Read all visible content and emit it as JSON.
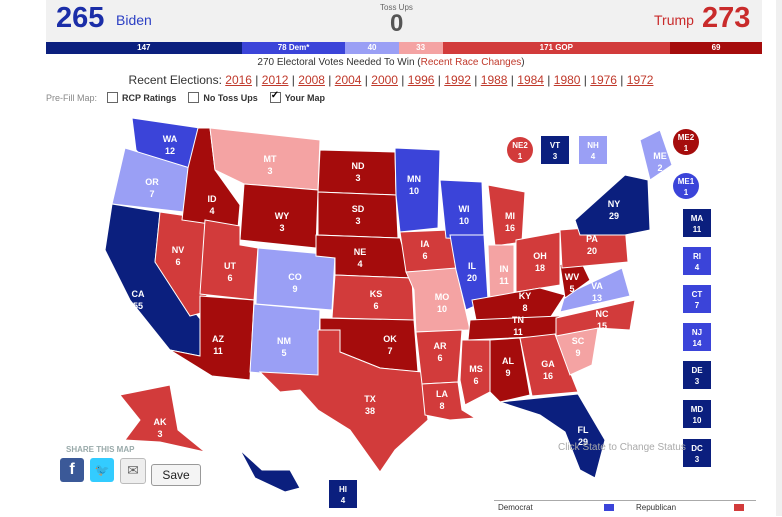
{
  "header": {
    "dem_votes": "265",
    "dem_name": "Biden",
    "toss_label": "Toss Ups",
    "toss_votes": "0",
    "rep_name": "Trump",
    "rep_votes": "273"
  },
  "bar": [
    {
      "label": "147",
      "votes": 147,
      "color": "#0b1f7e"
    },
    {
      "label": "78 Dem*",
      "votes": 78,
      "color": "#3b44d9"
    },
    {
      "label": "40",
      "votes": 40,
      "color": "#9a9ff5"
    },
    {
      "label": "33",
      "votes": 33,
      "color": "#f4a3a3"
    },
    {
      "label": "171 GOP",
      "votes": 171,
      "color": "#d23b3b"
    },
    {
      "label": "69",
      "votes": 69,
      "color": "#a50c0c"
    }
  ],
  "needed": {
    "text": "270 Electoral Votes Needed To Win (",
    "link": "Recent Race Changes",
    "close": ")"
  },
  "recent": {
    "label": "Recent Elections:",
    "years": [
      "2016",
      "2012",
      "2008",
      "2004",
      "2000",
      "1996",
      "1992",
      "1988",
      "1984",
      "1980",
      "1976",
      "1972"
    ]
  },
  "prefill": {
    "label": "Pre-Fill Map:",
    "options": [
      {
        "label": "RCP Ratings",
        "checked": false
      },
      {
        "label": "No Toss Ups",
        "checked": false
      },
      {
        "label": "Your Map",
        "checked": true
      }
    ]
  },
  "colors": {
    "solid_dem": "#0b1f7e",
    "likely_dem": "#3b44d9",
    "lean_dem": "#9a9ff5",
    "lean_rep": "#f4a3a3",
    "likely_rep": "#d23b3b",
    "solid_rep": "#a50c0c"
  },
  "states": [
    {
      "abbr": "WA",
      "ev": "12",
      "rating": "likely_dem"
    },
    {
      "abbr": "OR",
      "ev": "7",
      "rating": "lean_dem"
    },
    {
      "abbr": "CA",
      "ev": "55",
      "rating": "solid_dem"
    },
    {
      "abbr": "NV",
      "ev": "6",
      "rating": "likely_rep"
    },
    {
      "abbr": "ID",
      "ev": "4",
      "rating": "solid_rep"
    },
    {
      "abbr": "MT",
      "ev": "3",
      "rating": "lean_rep"
    },
    {
      "abbr": "WY",
      "ev": "3",
      "rating": "solid_rep"
    },
    {
      "abbr": "UT",
      "ev": "6",
      "rating": "likely_rep"
    },
    {
      "abbr": "AZ",
      "ev": "11",
      "rating": "solid_rep"
    },
    {
      "abbr": "CO",
      "ev": "9",
      "rating": "lean_dem"
    },
    {
      "abbr": "NM",
      "ev": "5",
      "rating": "lean_dem"
    },
    {
      "abbr": "ND",
      "ev": "3",
      "rating": "solid_rep"
    },
    {
      "abbr": "SD",
      "ev": "3",
      "rating": "solid_rep"
    },
    {
      "abbr": "NE",
      "ev": "4",
      "rating": "solid_rep"
    },
    {
      "abbr": "KS",
      "ev": "6",
      "rating": "likely_rep"
    },
    {
      "abbr": "OK",
      "ev": "7",
      "rating": "solid_rep"
    },
    {
      "abbr": "TX",
      "ev": "38",
      "rating": "likely_rep"
    },
    {
      "abbr": "MN",
      "ev": "10",
      "rating": "likely_dem"
    },
    {
      "abbr": "IA",
      "ev": "6",
      "rating": "likely_rep"
    },
    {
      "abbr": "MO",
      "ev": "10",
      "rating": "lean_rep"
    },
    {
      "abbr": "AR",
      "ev": "6",
      "rating": "likely_rep"
    },
    {
      "abbr": "LA",
      "ev": "8",
      "rating": "likely_rep"
    },
    {
      "abbr": "WI",
      "ev": "10",
      "rating": "likely_dem"
    },
    {
      "abbr": "IL",
      "ev": "20",
      "rating": "likely_dem"
    },
    {
      "abbr": "MI",
      "ev": "16",
      "rating": "likely_rep"
    },
    {
      "abbr": "IN",
      "ev": "11",
      "rating": "lean_rep"
    },
    {
      "abbr": "OH",
      "ev": "18",
      "rating": "likely_rep"
    },
    {
      "abbr": "KY",
      "ev": "8",
      "rating": "solid_rep"
    },
    {
      "abbr": "TN",
      "ev": "11",
      "rating": "solid_rep"
    },
    {
      "abbr": "MS",
      "ev": "6",
      "rating": "likely_rep"
    },
    {
      "abbr": "AL",
      "ev": "9",
      "rating": "solid_rep"
    },
    {
      "abbr": "GA",
      "ev": "16",
      "rating": "likely_rep"
    },
    {
      "abbr": "FL",
      "ev": "29",
      "rating": "solid_dem"
    },
    {
      "abbr": "SC",
      "ev": "9",
      "rating": "lean_rep"
    },
    {
      "abbr": "NC",
      "ev": "15",
      "rating": "likely_rep"
    },
    {
      "abbr": "VA",
      "ev": "13",
      "rating": "lean_dem"
    },
    {
      "abbr": "WV",
      "ev": "5",
      "rating": "solid_rep"
    },
    {
      "abbr": "PA",
      "ev": "20",
      "rating": "likely_rep"
    },
    {
      "abbr": "NY",
      "ev": "29",
      "rating": "solid_dem"
    },
    {
      "abbr": "ME",
      "ev": "2",
      "rating": "lean_dem"
    },
    {
      "abbr": "AK",
      "ev": "3",
      "rating": "likely_rep"
    },
    {
      "abbr": "HI",
      "ev": "4",
      "rating": "solid_dem"
    }
  ],
  "boxes": [
    {
      "abbr": "NE2",
      "ev": "1",
      "rating": "likely_rep"
    },
    {
      "abbr": "VT",
      "ev": "3",
      "rating": "solid_dem"
    },
    {
      "abbr": "NH",
      "ev": "4",
      "rating": "lean_dem"
    },
    {
      "abbr": "ME2",
      "ev": "1",
      "rating": "solid_rep"
    },
    {
      "abbr": "ME1",
      "ev": "1",
      "rating": "likely_dem"
    },
    {
      "abbr": "MA",
      "ev": "11",
      "rating": "solid_dem"
    },
    {
      "abbr": "RI",
      "ev": "4",
      "rating": "likely_dem"
    },
    {
      "abbr": "CT",
      "ev": "7",
      "rating": "likely_dem"
    },
    {
      "abbr": "NJ",
      "ev": "14",
      "rating": "likely_dem"
    },
    {
      "abbr": "DE",
      "ev": "3",
      "rating": "solid_dem"
    },
    {
      "abbr": "MD",
      "ev": "10",
      "rating": "solid_dem"
    },
    {
      "abbr": "DC",
      "ev": "3",
      "rating": "solid_dem"
    },
    {
      "abbr": "HI",
      "ev": "4",
      "rating": "solid_dem"
    }
  ],
  "share": {
    "label": "SHARE THIS MAP",
    "save": "Save",
    "hint": "Click State to Change Status"
  },
  "legend": [
    {
      "label": "Democrat",
      "color": "#3b44d9"
    },
    {
      "label": "Republican",
      "color": "#d23b3b"
    }
  ]
}
